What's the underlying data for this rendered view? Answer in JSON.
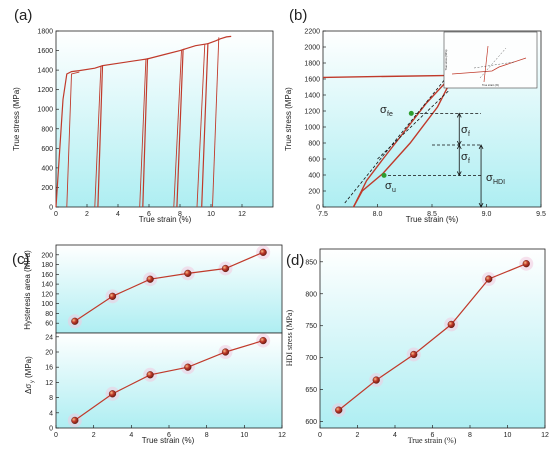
{
  "chart_data": [
    {
      "id": "a",
      "panel_label": "(a)",
      "type": "line",
      "xlabel": "True strain (%)",
      "ylabel": "True stress (MPa)",
      "xlim": [
        0,
        14
      ],
      "ylim": [
        0,
        1800
      ],
      "xticks": [
        0,
        2,
        4,
        6,
        8,
        10,
        12
      ],
      "yticks": [
        0,
        200,
        400,
        600,
        800,
        1000,
        1200,
        1400,
        1600,
        1800
      ],
      "series": [
        {
          "x": [
            0,
            0.45,
            0.7,
            1.0,
            1.5,
            2.5,
            2.9,
            3.0
          ],
          "y": [
            0,
            1100,
            1360,
            1385,
            1395,
            1420,
            1440,
            1445
          ]
        },
        {
          "x": [
            2.7,
            3.0,
            4.0,
            5.5,
            5.9,
            6.0
          ],
          "y": [
            0,
            1445,
            1470,
            1505,
            1515,
            1520
          ]
        },
        {
          "x": [
            5.6,
            5.9,
            7.0,
            8.0,
            8.3
          ],
          "y": [
            0,
            1515,
            1560,
            1600,
            1615
          ]
        },
        {
          "x": [
            7.8,
            8.2,
            9.0,
            9.8
          ],
          "y": [
            0,
            1610,
            1650,
            1670
          ]
        },
        {
          "x": [
            9.4,
            9.8,
            10.3,
            10.6,
            11.0,
            11.3
          ],
          "y": [
            0,
            1670,
            1700,
            1720,
            1740,
            1745
          ]
        },
        {
          "x": [
            0.7,
            1.0,
            1.5
          ],
          "y": [
            0,
            1360,
            1380
          ]
        },
        {
          "x": [
            2.5,
            2.9
          ],
          "y": [
            0,
            1440
          ]
        },
        {
          "x": [
            5.4,
            5.8
          ],
          "y": [
            0,
            1510
          ]
        },
        {
          "x": [
            7.6,
            8.1
          ],
          "y": [
            0,
            1605
          ]
        },
        {
          "x": [
            9.1,
            9.6
          ],
          "y": [
            0,
            1665
          ]
        },
        {
          "x": [
            10.1,
            10.5
          ],
          "y": [
            0,
            1735
          ]
        }
      ],
      "color": "#c03a2b",
      "grid": false
    },
    {
      "id": "b",
      "panel_label": "(b)",
      "type": "line",
      "xlabel": "True strain (%)",
      "ylabel": "True stress (MPa)",
      "xlim": [
        7.5,
        9.5
      ],
      "ylim": [
        0,
        2200
      ],
      "xticks": [
        7.5,
        8.0,
        8.5,
        9.0,
        9.5
      ],
      "xtick_labels": [
        "7.5",
        "8.0",
        "8.5",
        "9.0",
        "9.5"
      ],
      "yticks": [
        0,
        200,
        400,
        600,
        800,
        1000,
        1200,
        1400,
        1600,
        1800,
        2000,
        2200
      ],
      "series": [
        {
          "x": [
            7.5,
            8.68,
            8.7
          ],
          "y": [
            1620,
            1645,
            1650
          ]
        },
        {
          "x": [
            8.7,
            8.62,
            8.45,
            8.25,
            8.05,
            7.9,
            7.78
          ],
          "y": [
            1650,
            1550,
            1300,
            950,
            600,
            330,
            0
          ]
        },
        {
          "x": [
            7.78,
            7.86,
            8.05,
            8.3,
            8.55,
            8.7
          ],
          "y": [
            0,
            200,
            420,
            800,
            1250,
            1650
          ]
        }
      ],
      "guides": {
        "dashed_lines": [
          {
            "x": [
              7.7,
              8.65
            ],
            "y": [
              50,
              1650
            ]
          },
          {
            "x": [
              8.0,
              8.65
            ],
            "y": [
              600,
              1450
            ]
          }
        ],
        "level_lines": [
          {
            "x": [
              8.3,
              8.95
            ],
            "y": [
              1170,
              1170
            ]
          },
          {
            "x": [
              8.05,
              8.95
            ],
            "y": [
              395,
              395
            ]
          },
          {
            "x": [
              8.5,
              8.95
            ],
            "y": [
              775,
              775
            ]
          }
        ]
      },
      "annotations": [
        "σ",
        "σ",
        "σ",
        "σ"
      ],
      "subscripts": [
        "fe",
        "f",
        "f",
        "HDI",
        "u"
      ],
      "inset": {
        "xlabel": "True strain (%)",
        "ylabel": "True stress (MPa)"
      },
      "color": "#c03a2b",
      "grid": false
    },
    {
      "id": "c-top",
      "panel_label": "(c)",
      "type": "line",
      "xlabel": "",
      "ylabel": "Hysteresis area (MPa)",
      "x": [
        1,
        3,
        5,
        7,
        9,
        11
      ],
      "values": [
        64,
        115,
        150,
        162,
        172,
        205
      ],
      "ylim": [
        40,
        220
      ],
      "yticks": [
        60,
        80,
        100,
        120,
        140,
        160,
        180,
        200
      ],
      "xlim": [
        0,
        12
      ],
      "grid": false
    },
    {
      "id": "c-bottom",
      "type": "line",
      "xlabel": "True strain (%)",
      "ylabel": "Δσ",
      "ylabel_sub": "y",
      "ylabel_unit": "(MPa)",
      "x": [
        1,
        3,
        5,
        7,
        9,
        11
      ],
      "values": [
        2,
        9,
        14,
        16,
        20,
        23
      ],
      "ylim": [
        0,
        25
      ],
      "yticks": [
        0,
        4,
        8,
        12,
        16,
        20,
        24
      ],
      "xlim": [
        0,
        12
      ],
      "xticks": [
        0,
        2,
        4,
        6,
        8,
        10,
        12
      ],
      "grid": false
    },
    {
      "id": "d",
      "panel_label": "(d)",
      "type": "line",
      "xlabel": "True strain (%)",
      "ylabel": "HDI stress (MPa)",
      "x": [
        1,
        3,
        5,
        7,
        9,
        11
      ],
      "values": [
        618,
        665,
        705,
        752,
        823,
        847
      ],
      "ylim": [
        590,
        870
      ],
      "yticks": [
        600,
        650,
        700,
        750,
        800,
        850
      ],
      "xlim": [
        0,
        12
      ],
      "xticks": [
        0,
        2,
        4,
        6,
        8,
        10,
        12
      ],
      "grid": false
    }
  ],
  "colors": {
    "curve": "#c03a2b",
    "marker": "#b8261a",
    "bg_top": "#ffffff",
    "bg_bottom": "#aeeef2",
    "axis": "#222222"
  }
}
